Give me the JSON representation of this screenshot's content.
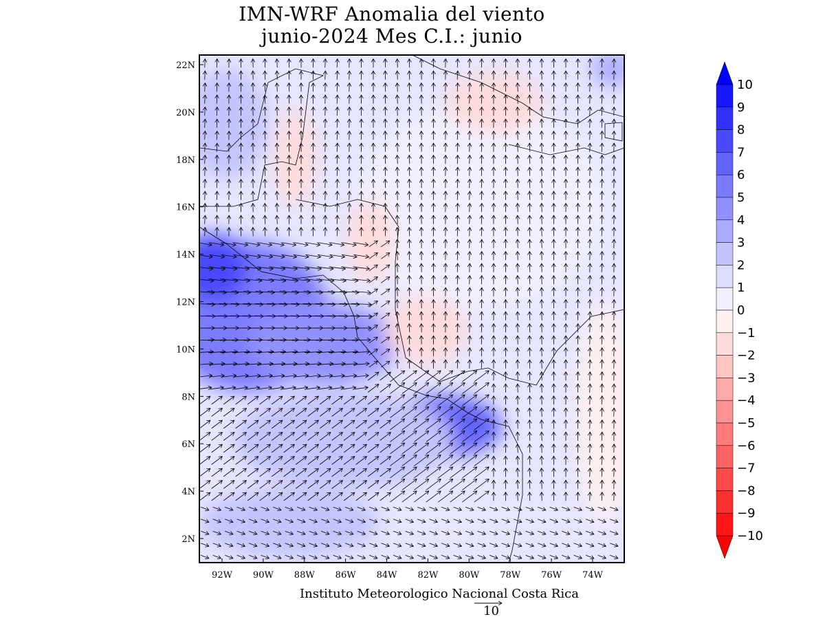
{
  "title": {
    "line1": "IMN-WRF Anomalia del viento",
    "line2": "junio-2024 Mes C.I.: junio"
  },
  "credit": "Instituto Meteorologico Nacional Costa Rica",
  "reference_vector": {
    "label": "10",
    "magnitude": 10
  },
  "chart_data": {
    "type": "heatmap",
    "subtype": "wind anomaly shaded map with vectors",
    "variable": "wind anomaly",
    "period": "junio-2024",
    "lon_range": [
      -93.1,
      -72.5
    ],
    "lat_range": [
      1,
      22.4
    ],
    "x_ticks": [
      "92W",
      "90W",
      "88W",
      "86W",
      "84W",
      "82W",
      "80W",
      "78W",
      "76W",
      "74W"
    ],
    "y_ticks": [
      "22N",
      "20N",
      "18N",
      "16N",
      "14N",
      "12N",
      "10N",
      "8N",
      "6N",
      "4N",
      "2N"
    ],
    "colorbar": {
      "labels": [
        "10",
        "9",
        "8",
        "7",
        "6",
        "5",
        "4",
        "3",
        "2",
        "1",
        "0",
        "−1",
        "−2",
        "−3",
        "−4",
        "−5",
        "−6",
        "−7",
        "−8",
        "−9",
        "−10"
      ],
      "levels": [
        10,
        9,
        8,
        7,
        6,
        5,
        4,
        3,
        2,
        1,
        0,
        -1,
        -2,
        -3,
        -4,
        -5,
        -6,
        -7,
        -8,
        -9,
        -10
      ],
      "colors": [
        "#1717ff",
        "#3030ff",
        "#4a4aff",
        "#6363ff",
        "#7b7bff",
        "#9292ff",
        "#aaaaff",
        "#c4c4ff",
        "#dcdcff",
        "#f0f0ff",
        "#fff0f0",
        "#ffdcdc",
        "#ffc4c4",
        "#ffaaaa",
        "#ff9292",
        "#ff7b7b",
        "#ff6363",
        "#ff4a4a",
        "#ff3030",
        "#ff1717"
      ],
      "over_color": "#0000ff",
      "under_color": "#ff0000"
    }
  }
}
